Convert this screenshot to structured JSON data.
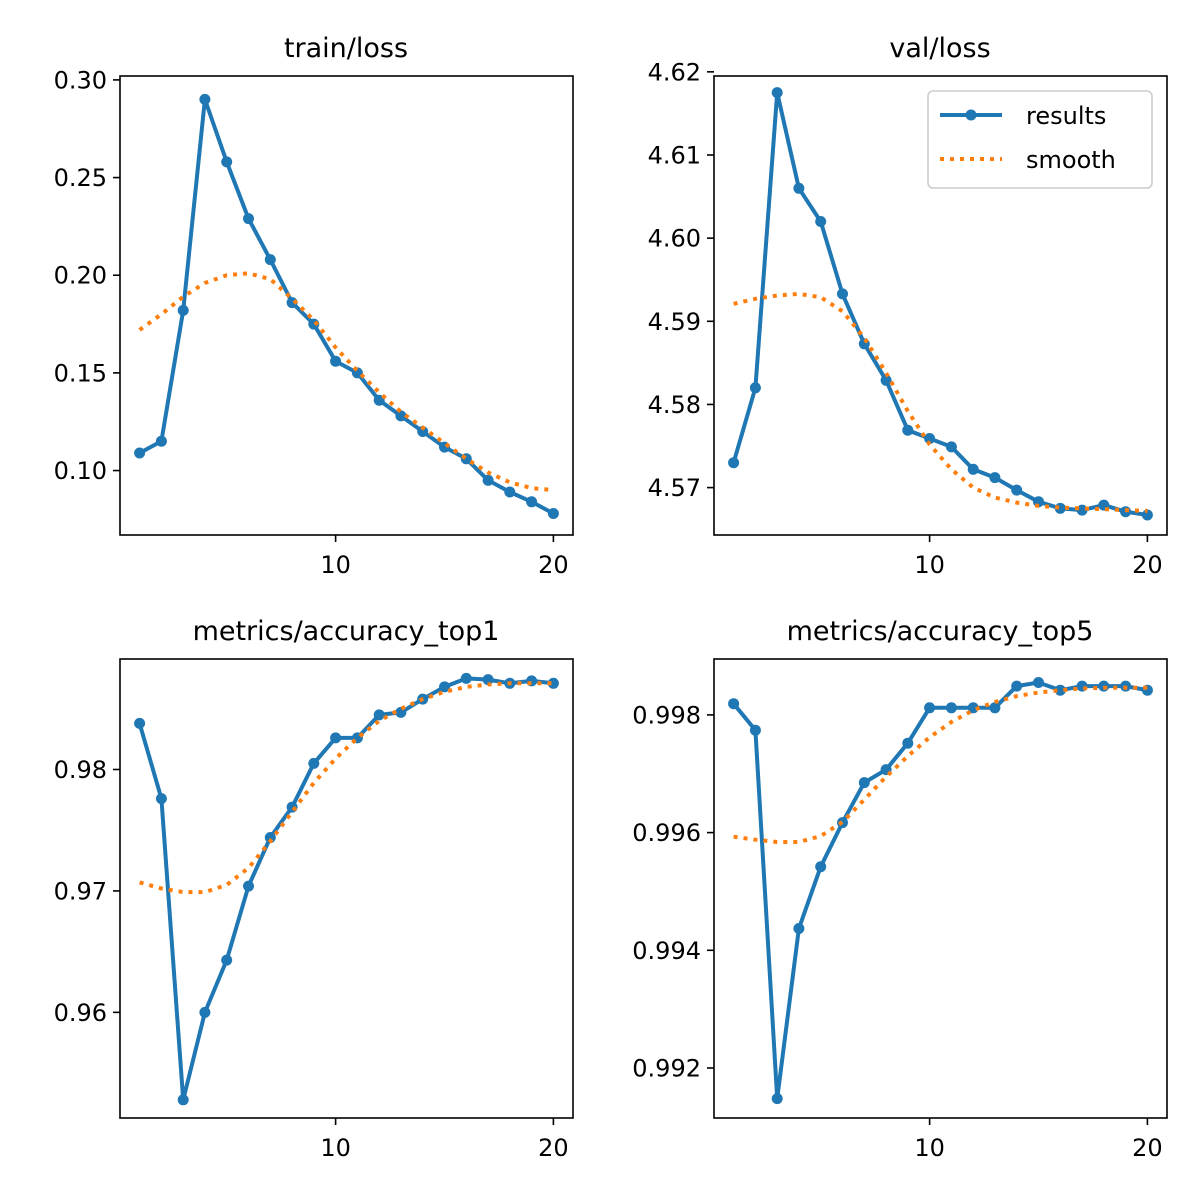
{
  "colors": {
    "results": "#1f77b4",
    "smooth": "#ff7f0e",
    "axes": "#000000",
    "legend_border": "#cccccc"
  },
  "legend": {
    "results": "results",
    "smooth": "smooth",
    "placement": "upper-right of val/loss"
  },
  "chart_data": [
    {
      "type": "line",
      "title": "train/loss",
      "xlabel": "",
      "ylabel": "",
      "xlim": [
        0.1,
        20.9
      ],
      "ylim": [
        0.067,
        0.302
      ],
      "xticks": [
        10,
        20
      ],
      "xtick_labels": [
        "10",
        "20"
      ],
      "yticks": [
        0.1,
        0.15,
        0.2,
        0.25,
        0.3
      ],
      "ytick_labels": [
        "0.10",
        "0.15",
        "0.20",
        "0.25",
        "0.30"
      ],
      "grid": false,
      "legend": false,
      "x": [
        1,
        2,
        3,
        4,
        5,
        6,
        7,
        8,
        9,
        10,
        11,
        12,
        13,
        14,
        15,
        16,
        17,
        18,
        19,
        20
      ],
      "series": [
        {
          "name": "results",
          "style": "solid-markers",
          "values": [
            0.109,
            0.115,
            0.182,
            0.29,
            0.258,
            0.229,
            0.208,
            0.186,
            0.175,
            0.156,
            0.15,
            0.136,
            0.128,
            0.12,
            0.112,
            0.106,
            0.095,
            0.089,
            0.084,
            0.078
          ]
        },
        {
          "name": "smooth",
          "style": "dotted",
          "values": [
            0.172,
            0.18,
            0.189,
            0.196,
            0.2,
            0.201,
            0.198,
            0.188,
            0.177,
            0.163,
            0.151,
            0.14,
            0.13,
            0.122,
            0.114,
            0.106,
            0.099,
            0.094,
            0.091,
            0.09
          ]
        }
      ]
    },
    {
      "type": "line",
      "title": "val/loss",
      "xlabel": "",
      "ylabel": "",
      "xlim": [
        0.1,
        20.9
      ],
      "ylim": [
        4.5643,
        4.6195
      ],
      "xticks": [
        10,
        20
      ],
      "xtick_labels": [
        "10",
        "20"
      ],
      "yticks": [
        4.57,
        4.58,
        4.59,
        4.6,
        4.61,
        4.62
      ],
      "ytick_labels": [
        "4.57",
        "4.58",
        "4.59",
        "4.60",
        "4.61",
        "4.62"
      ],
      "grid": false,
      "legend": true,
      "x": [
        1,
        2,
        3,
        4,
        5,
        6,
        7,
        8,
        9,
        10,
        11,
        12,
        13,
        14,
        15,
        16,
        17,
        18,
        19,
        20
      ],
      "series": [
        {
          "name": "results",
          "style": "solid-markers",
          "values": [
            4.573,
            4.582,
            4.6175,
            4.606,
            4.602,
            4.5933,
            4.5873,
            4.5829,
            4.5769,
            4.5759,
            4.5749,
            4.5722,
            4.5712,
            4.5697,
            4.5683,
            4.5675,
            4.5673,
            4.5679,
            4.5671,
            4.5667
          ]
        },
        {
          "name": "smooth",
          "style": "dotted",
          "values": [
            4.5921,
            4.5927,
            4.5931,
            4.5933,
            4.5929,
            4.5912,
            4.588,
            4.5838,
            4.5792,
            4.5752,
            4.5722,
            4.57,
            4.5688,
            4.5682,
            4.5678,
            4.5676,
            4.5675,
            4.5674,
            4.5673,
            4.5672
          ]
        }
      ]
    },
    {
      "type": "line",
      "title": "metrics/accuracy_top1",
      "xlabel": "",
      "ylabel": "",
      "xlim": [
        0.1,
        20.9
      ],
      "ylim": [
        0.9513,
        0.9891
      ],
      "xticks": [
        10,
        20
      ],
      "xtick_labels": [
        "10",
        "20"
      ],
      "yticks": [
        0.96,
        0.97,
        0.98
      ],
      "ytick_labels": [
        "0.96",
        "0.97",
        "0.98"
      ],
      "grid": false,
      "legend": false,
      "x": [
        1,
        2,
        3,
        4,
        5,
        6,
        7,
        8,
        9,
        10,
        11,
        12,
        13,
        14,
        15,
        16,
        17,
        18,
        19,
        20
      ],
      "series": [
        {
          "name": "results",
          "style": "solid-markers",
          "values": [
            0.9838,
            0.9776,
            0.9528,
            0.96,
            0.9643,
            0.9704,
            0.9744,
            0.9769,
            0.9805,
            0.9826,
            0.9826,
            0.9845,
            0.9847,
            0.9858,
            0.9868,
            0.9875,
            0.9874,
            0.9871,
            0.9873,
            0.9871
          ]
        },
        {
          "name": "smooth",
          "style": "dotted",
          "values": [
            0.9707,
            0.9702,
            0.9699,
            0.9699,
            0.9705,
            0.9719,
            0.9741,
            0.9765,
            0.9789,
            0.9809,
            0.9826,
            0.984,
            0.985,
            0.9858,
            0.9864,
            0.9868,
            0.987,
            0.9871,
            0.9871,
            0.9871
          ]
        }
      ]
    },
    {
      "type": "line",
      "title": "metrics/accuracy_top5",
      "xlabel": "",
      "ylabel": "",
      "xlim": [
        0.1,
        20.9
      ],
      "ylim": [
        0.99115,
        0.99895
      ],
      "xticks": [
        10,
        20
      ],
      "xtick_labels": [
        "10",
        "20"
      ],
      "yticks": [
        0.992,
        0.994,
        0.996,
        0.998
      ],
      "ytick_labels": [
        "0.992",
        "0.994",
        "0.996",
        "0.998"
      ],
      "grid": false,
      "legend": false,
      "x": [
        1,
        2,
        3,
        4,
        5,
        6,
        7,
        8,
        9,
        10,
        11,
        12,
        13,
        14,
        15,
        16,
        17,
        18,
        19,
        20
      ],
      "series": [
        {
          "name": "results",
          "style": "solid-markers",
          "values": [
            0.99819,
            0.99774,
            0.99148,
            0.99437,
            0.99542,
            0.99617,
            0.99685,
            0.99707,
            0.99752,
            0.99812,
            0.99812,
            0.99812,
            0.99812,
            0.99849,
            0.99855,
            0.99842,
            0.99849,
            0.99849,
            0.99849,
            0.99842
          ]
        },
        {
          "name": "smooth",
          "style": "dotted",
          "values": [
            0.99593,
            0.99588,
            0.99584,
            0.99584,
            0.99594,
            0.99618,
            0.99656,
            0.99695,
            0.9973,
            0.99762,
            0.99788,
            0.99808,
            0.99822,
            0.99832,
            0.99838,
            0.99842,
            0.99845,
            0.99846,
            0.99846,
            0.99846
          ]
        }
      ]
    }
  ]
}
